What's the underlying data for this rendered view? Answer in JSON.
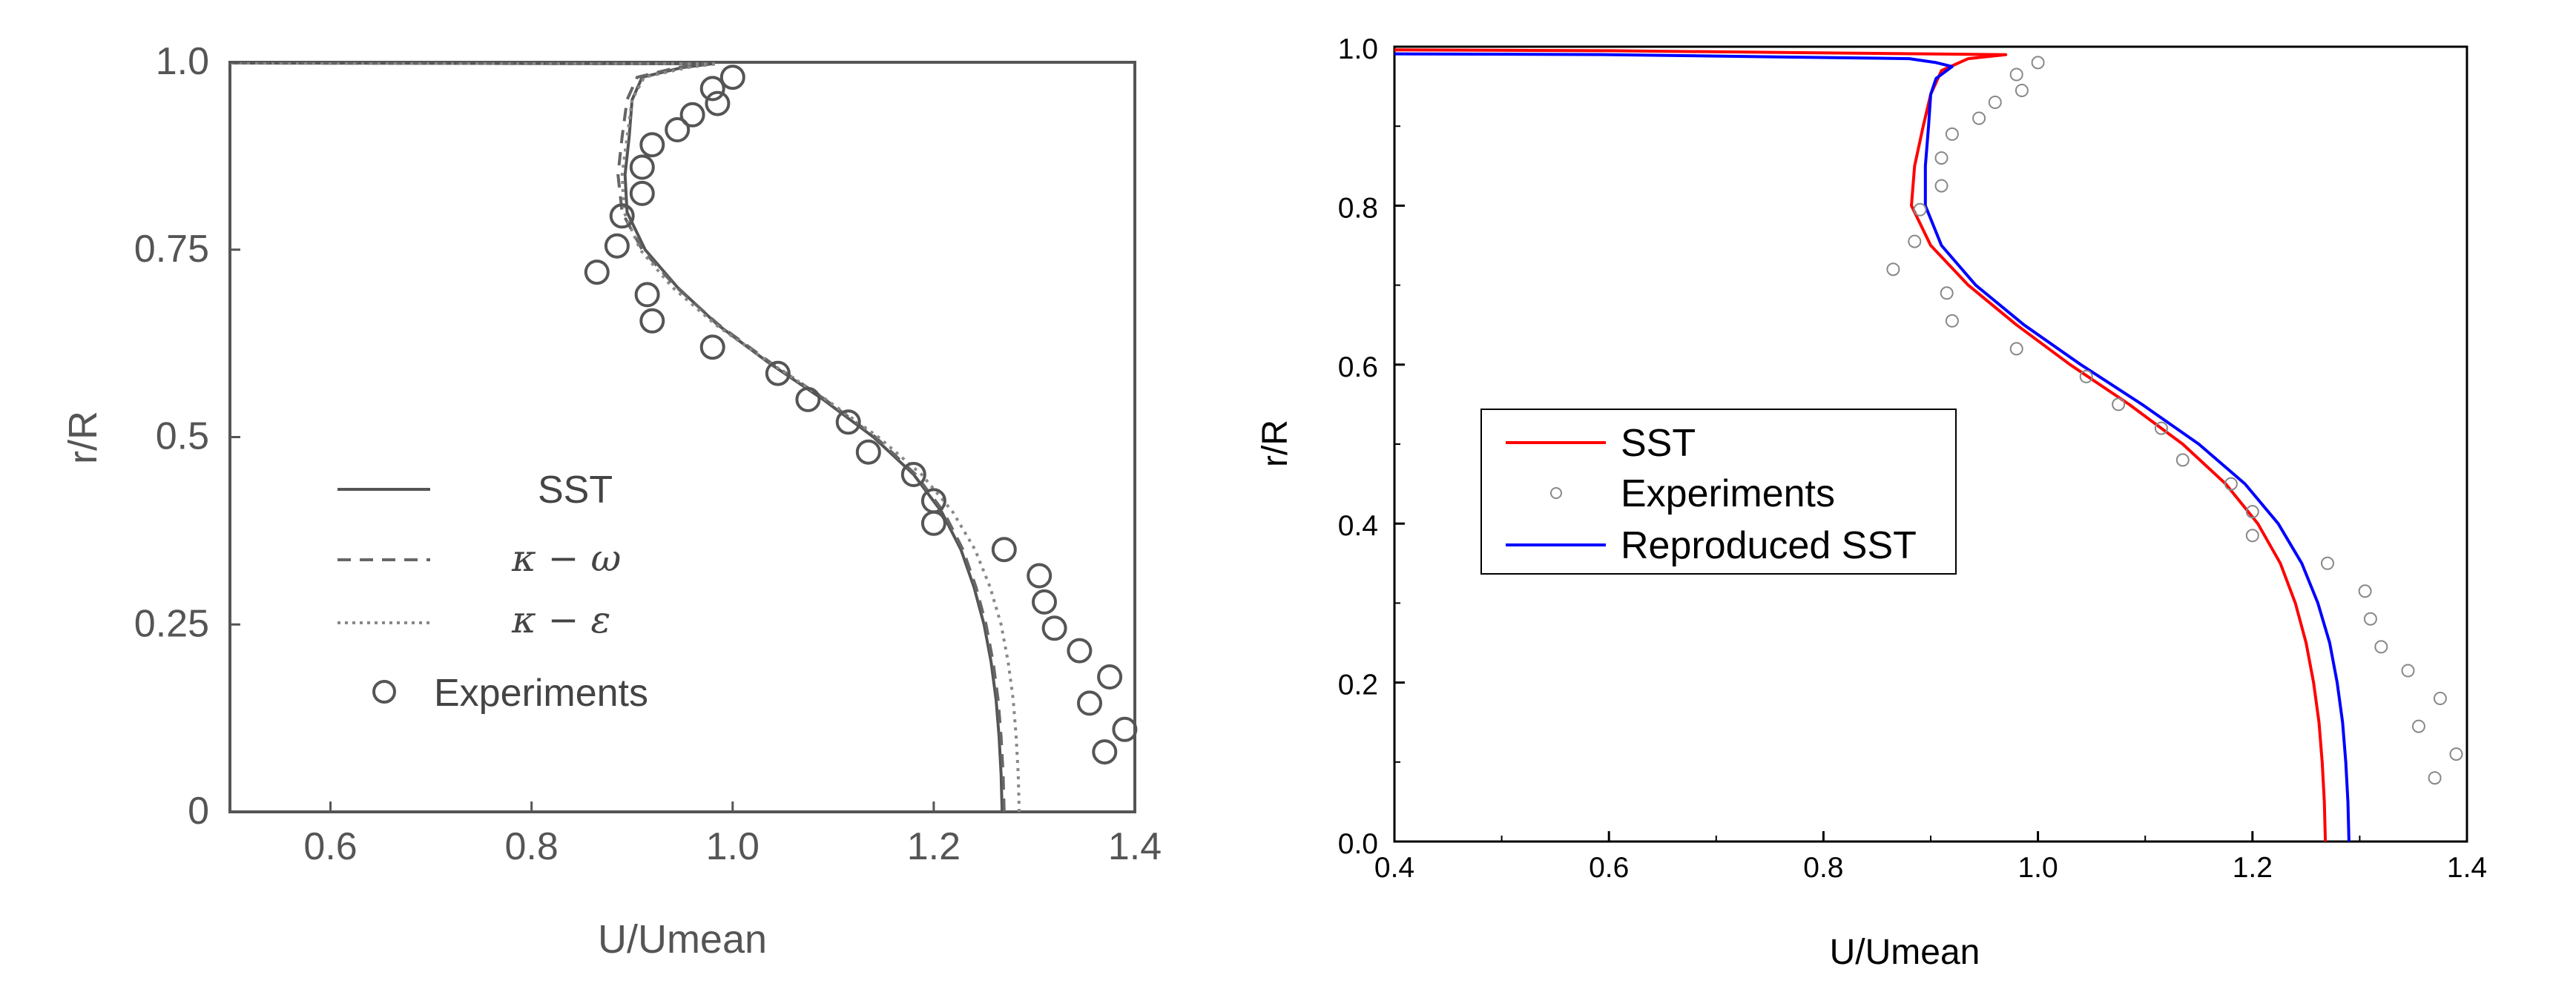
{
  "chart_data": [
    {
      "type": "line",
      "panel": "left",
      "xlabel": "U/Umean",
      "ylabel": "r/R",
      "xlim": [
        0.5,
        1.4
      ],
      "ylim": [
        0,
        1.0
      ],
      "x_ticks": [
        "0.6",
        "0.8",
        "1.0",
        "1.2",
        "1.4"
      ],
      "y_ticks": [
        "0",
        "0.25",
        "0.5",
        "0.75",
        "1.0"
      ],
      "grid": false,
      "legend_position": "lower-left",
      "legend": {
        "sst": "SST",
        "kw_left": "κ − ω",
        "ke_left": "κ − ε",
        "experiments": "Experiments"
      },
      "series": [
        {
          "name": "SST",
          "style": "solid",
          "color": "#555555",
          "points": [
            [
              1.268,
              0.0
            ],
            [
              1.267,
              0.05
            ],
            [
              1.265,
              0.1
            ],
            [
              1.262,
              0.15
            ],
            [
              1.257,
              0.2
            ],
            [
              1.25,
              0.25
            ],
            [
              1.24,
              0.3
            ],
            [
              1.227,
              0.35
            ],
            [
              1.208,
              0.4
            ],
            [
              1.18,
              0.45
            ],
            [
              1.14,
              0.5
            ],
            [
              1.09,
              0.55
            ],
            [
              1.035,
              0.6
            ],
            [
              0.985,
              0.65
            ],
            [
              0.945,
              0.7
            ],
            [
              0.913,
              0.75
            ],
            [
              0.895,
              0.8
            ],
            [
              0.893,
              0.85
            ],
            [
              0.897,
              0.9
            ],
            [
              0.9,
              0.95
            ],
            [
              0.91,
              0.98
            ],
            [
              0.95,
              0.993
            ],
            [
              0.98,
              0.998
            ],
            [
              0.5,
              0.999
            ]
          ]
        },
        {
          "name": "κ − ω",
          "style": "dashed",
          "color": "#666666",
          "points": [
            [
              1.27,
              0.0
            ],
            [
              1.269,
              0.05
            ],
            [
              1.267,
              0.1
            ],
            [
              1.264,
              0.15
            ],
            [
              1.259,
              0.2
            ],
            [
              1.252,
              0.25
            ],
            [
              1.242,
              0.3
            ],
            [
              1.229,
              0.35
            ],
            [
              1.21,
              0.4
            ],
            [
              1.182,
              0.45
            ],
            [
              1.142,
              0.5
            ],
            [
              1.092,
              0.55
            ],
            [
              1.037,
              0.6
            ],
            [
              0.986,
              0.65
            ],
            [
              0.944,
              0.7
            ],
            [
              0.91,
              0.75
            ],
            [
              0.89,
              0.8
            ],
            [
              0.886,
              0.85
            ],
            [
              0.89,
              0.9
            ],
            [
              0.895,
              0.95
            ],
            [
              0.905,
              0.98
            ],
            [
              0.945,
              0.993
            ],
            [
              0.975,
              0.998
            ],
            [
              0.5,
              0.999
            ]
          ]
        },
        {
          "name": "κ − ε",
          "style": "dotted",
          "color": "#888888",
          "points": [
            [
              1.285,
              0.0
            ],
            [
              1.284,
              0.05
            ],
            [
              1.282,
              0.1
            ],
            [
              1.279,
              0.15
            ],
            [
              1.274,
              0.2
            ],
            [
              1.267,
              0.25
            ],
            [
              1.256,
              0.3
            ],
            [
              1.241,
              0.35
            ],
            [
              1.219,
              0.4
            ],
            [
              1.188,
              0.45
            ],
            [
              1.145,
              0.5
            ],
            [
              1.093,
              0.55
            ],
            [
              1.036,
              0.6
            ],
            [
              0.983,
              0.65
            ],
            [
              0.94,
              0.7
            ],
            [
              0.908,
              0.75
            ],
            [
              0.892,
              0.8
            ],
            [
              0.89,
              0.85
            ],
            [
              0.895,
              0.9
            ],
            [
              0.9,
              0.95
            ],
            [
              0.912,
              0.98
            ],
            [
              0.955,
              0.993
            ],
            [
              0.985,
              0.998
            ],
            [
              0.5,
              0.999
            ]
          ]
        }
      ],
      "experiments": [
        [
          0.865,
          0.72
        ],
        [
          0.885,
          0.755
        ],
        [
          0.89,
          0.795
        ],
        [
          0.91,
          0.825
        ],
        [
          0.91,
          0.86
        ],
        [
          0.92,
          0.89
        ],
        [
          0.945,
          0.91
        ],
        [
          0.96,
          0.93
        ],
        [
          0.985,
          0.945
        ],
        [
          0.98,
          0.965
        ],
        [
          1.0,
          0.98
        ],
        [
          0.915,
          0.69
        ],
        [
          0.92,
          0.655
        ],
        [
          0.98,
          0.62
        ],
        [
          1.045,
          0.585
        ],
        [
          1.075,
          0.55
        ],
        [
          1.115,
          0.52
        ],
        [
          1.135,
          0.48
        ],
        [
          1.18,
          0.45
        ],
        [
          1.2,
          0.415
        ],
        [
          1.2,
          0.385
        ],
        [
          1.27,
          0.35
        ],
        [
          1.305,
          0.315
        ],
        [
          1.31,
          0.28
        ],
        [
          1.32,
          0.245
        ],
        [
          1.345,
          0.215
        ],
        [
          1.375,
          0.18
        ],
        [
          1.355,
          0.145
        ],
        [
          1.39,
          0.11
        ],
        [
          1.37,
          0.08
        ]
      ]
    },
    {
      "type": "line",
      "panel": "right",
      "xlabel": "U/Umean",
      "ylabel": "r/R",
      "xlim": [
        0.4,
        1.4
      ],
      "ylim": [
        0.0,
        1.0
      ],
      "x_ticks": [
        "0.4",
        "0.6",
        "0.8",
        "1.0",
        "1.2",
        "1.4"
      ],
      "y_ticks": [
        "0.0",
        "0.2",
        "0.4",
        "0.6",
        "0.8",
        "1.0"
      ],
      "grid": false,
      "legend_position": "center-left",
      "legend": {
        "sst": "SST",
        "experiments": "Experiments",
        "reproduced": "Reproduced SST"
      },
      "series": [
        {
          "name": "SST",
          "color": "#ff0000",
          "points": [
            [
              1.268,
              0.0
            ],
            [
              1.267,
              0.05
            ],
            [
              1.265,
              0.1
            ],
            [
              1.262,
              0.15
            ],
            [
              1.257,
              0.2
            ],
            [
              1.25,
              0.25
            ],
            [
              1.24,
              0.3
            ],
            [
              1.226,
              0.35
            ],
            [
              1.205,
              0.4
            ],
            [
              1.175,
              0.45
            ],
            [
              1.135,
              0.5
            ],
            [
              1.085,
              0.55
            ],
            [
              1.03,
              0.6
            ],
            [
              0.98,
              0.65
            ],
            [
              0.935,
              0.7
            ],
            [
              0.9,
              0.75
            ],
            [
              0.882,
              0.8
            ],
            [
              0.885,
              0.85
            ],
            [
              0.893,
              0.9
            ],
            [
              0.9,
              0.94
            ],
            [
              0.91,
              0.97
            ],
            [
              0.935,
              0.985
            ],
            [
              0.97,
              0.99
            ],
            [
              0.6,
              0.995
            ],
            [
              0.4,
              0.996
            ]
          ]
        },
        {
          "name": "Reproduced SST",
          "color": "#0000ff",
          "points": [
            [
              1.29,
              0.0
            ],
            [
              1.289,
              0.05
            ],
            [
              1.287,
              0.1
            ],
            [
              1.284,
              0.15
            ],
            [
              1.279,
              0.2
            ],
            [
              1.272,
              0.25
            ],
            [
              1.261,
              0.3
            ],
            [
              1.246,
              0.35
            ],
            [
              1.224,
              0.4
            ],
            [
              1.193,
              0.45
            ],
            [
              1.15,
              0.5
            ],
            [
              1.097,
              0.55
            ],
            [
              1.04,
              0.6
            ],
            [
              0.987,
              0.65
            ],
            [
              0.942,
              0.7
            ],
            [
              0.91,
              0.75
            ],
            [
              0.895,
              0.8
            ],
            [
              0.895,
              0.85
            ],
            [
              0.898,
              0.9
            ],
            [
              0.9,
              0.94
            ],
            [
              0.905,
              0.96
            ],
            [
              0.92,
              0.975
            ],
            [
              0.905,
              0.98
            ],
            [
              0.88,
              0.985
            ],
            [
              0.6,
              0.99
            ],
            [
              0.4,
              0.991
            ]
          ]
        }
      ],
      "experiments": [
        [
          0.865,
          0.72
        ],
        [
          0.885,
          0.755
        ],
        [
          0.89,
          0.795
        ],
        [
          0.91,
          0.825
        ],
        [
          0.91,
          0.86
        ],
        [
          0.92,
          0.89
        ],
        [
          0.945,
          0.91
        ],
        [
          0.96,
          0.93
        ],
        [
          0.985,
          0.945
        ],
        [
          0.98,
          0.965
        ],
        [
          1.0,
          0.98
        ],
        [
          0.915,
          0.69
        ],
        [
          0.92,
          0.655
        ],
        [
          0.98,
          0.62
        ],
        [
          1.045,
          0.585
        ],
        [
          1.075,
          0.55
        ],
        [
          1.115,
          0.52
        ],
        [
          1.135,
          0.48
        ],
        [
          1.18,
          0.45
        ],
        [
          1.2,
          0.415
        ],
        [
          1.2,
          0.385
        ],
        [
          1.27,
          0.35
        ],
        [
          1.305,
          0.315
        ],
        [
          1.31,
          0.28
        ],
        [
          1.32,
          0.245
        ],
        [
          1.345,
          0.215
        ],
        [
          1.375,
          0.18
        ],
        [
          1.355,
          0.145
        ],
        [
          1.39,
          0.11
        ],
        [
          1.37,
          0.08
        ]
      ]
    }
  ]
}
